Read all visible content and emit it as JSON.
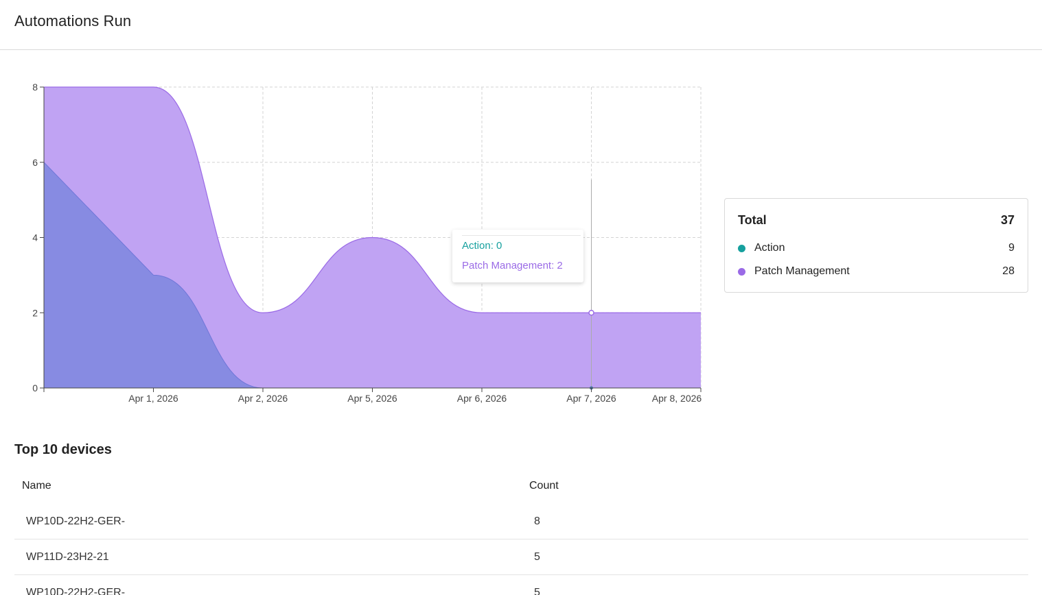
{
  "header": {
    "title": "Automations Run"
  },
  "colors": {
    "action": "#16a09e",
    "patch": "#9a6ae6",
    "patch_fill": "#c0a3f3",
    "action_fill": "#848ae0"
  },
  "chart_data": {
    "type": "area",
    "x": [
      "",
      "Apr 1, 2026",
      "Apr 2, 2026",
      "Apr 5, 2026",
      "Apr 6, 2026",
      "Apr 7, 2026",
      "Apr 8, 2026"
    ],
    "ylim": [
      0,
      8
    ],
    "yticks": [
      "0",
      "2",
      "4",
      "6",
      "8"
    ],
    "series": [
      {
        "name": "Action",
        "values": [
          6,
          3,
          0,
          0,
          0,
          0,
          0
        ]
      },
      {
        "name": "Patch Management",
        "values": [
          8,
          8,
          2,
          4,
          2,
          2,
          2
        ]
      }
    ],
    "grid": true,
    "tooltip": {
      "action_text": "Action: 0",
      "patch_text": "Patch Management: 2"
    }
  },
  "legend": {
    "total_label": "Total",
    "total_value": "37",
    "items": [
      {
        "label": "Action",
        "value": "9"
      },
      {
        "label": "Patch Management",
        "value": "28"
      }
    ]
  },
  "devices": {
    "title": "Top 10 devices",
    "col_name": "Name",
    "col_count": "Count",
    "rows": [
      {
        "name": "WP10D-22H2-GER-",
        "count": "8"
      },
      {
        "name": "WP11D-23H2-21",
        "count": "5"
      },
      {
        "name": "WP10D-22H2-GER-",
        "count": "5"
      }
    ]
  }
}
